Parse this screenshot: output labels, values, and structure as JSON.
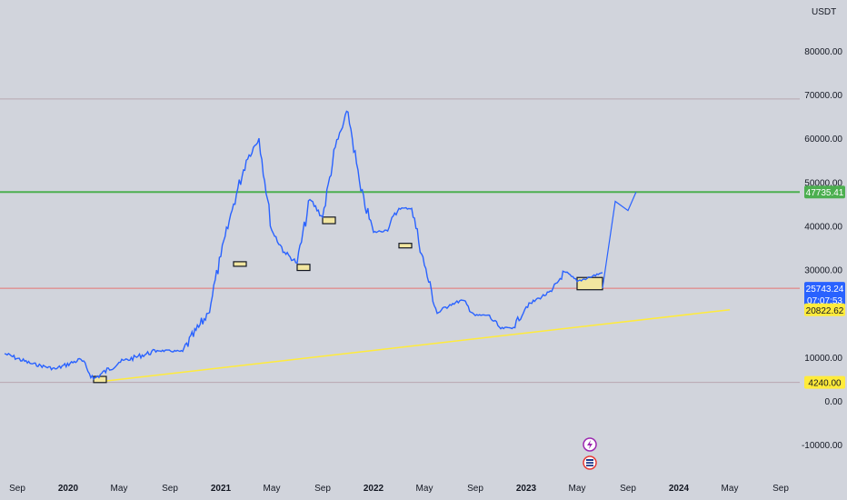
{
  "chart_data": {
    "type": "line",
    "currency": "USDT",
    "x_ticks": [
      "Sep",
      "2020",
      "May",
      "Sep",
      "2021",
      "May",
      "Sep",
      "2022",
      "May",
      "Sep",
      "2023",
      "May",
      "Sep",
      "2024",
      "May",
      "Sep"
    ],
    "major_ticks": [
      "2020",
      "2021",
      "2022",
      "2023",
      "2024"
    ],
    "y_ticks": [
      "80000.00",
      "70000.00",
      "60000.00",
      "50000.00",
      "40000.00",
      "30000.00",
      "10000.00",
      "0.00",
      "-10000.00"
    ],
    "ylim": [
      -10000,
      80000
    ],
    "series": [
      {
        "color": "#2962ff",
        "x": [
          "2019-08",
          "2019-10",
          "2019-12",
          "2020-02",
          "2020-03",
          "2020-05",
          "2020-08",
          "2020-10",
          "2020-12",
          "2021-01",
          "2021-02",
          "2021-03",
          "2021-04",
          "2021-05",
          "2021-06",
          "2021-07",
          "2021-08",
          "2021-09",
          "2021-10",
          "2021-11",
          "2021-12",
          "2022-01",
          "2022-02",
          "2022-03",
          "2022-04",
          "2022-05",
          "2022-06",
          "2022-07",
          "2022-08",
          "2022-09",
          "2022-10",
          "2022-11",
          "2022-12",
          "2023-01",
          "2023-02",
          "2023-03",
          "2023-04",
          "2023-05",
          "2023-06",
          "2023-07"
        ],
        "values": [
          10800,
          8600,
          7300,
          9500,
          5000,
          8800,
          11500,
          11300,
          20000,
          33000,
          45000,
          55000,
          60000,
          39000,
          34000,
          31500,
          46000,
          42000,
          58000,
          66000,
          48000,
          38500,
          39000,
          44000,
          44000,
          31000,
          20000,
          22000,
          23000,
          19500,
          19600,
          16500,
          16800,
          21500,
          23500,
          25000,
          29500,
          27300,
          28300,
          29300
        ]
      }
    ],
    "projection": {
      "color": "#2962ff",
      "x": [
        "2023-07",
        "2023-08",
        "2023-09",
        "2023-09-20"
      ],
      "values": [
        25743.24,
        45600,
        43500,
        47735.41
      ]
    },
    "horizontal_lines": [
      {
        "value": 47735.41,
        "color": "#4caf50",
        "label": "47735.41"
      },
      {
        "value": 69000,
        "color": "#b8a7b0"
      },
      {
        "value": 25743.24,
        "color": "#e57373"
      },
      {
        "value": 4240.0,
        "color": "#b8a7b0"
      }
    ],
    "trendline": {
      "color": "#ffeb3b",
      "x": [
        "2020-03",
        "2024-05"
      ],
      "values": [
        4240,
        20822.62
      ]
    },
    "zones": [
      {
        "x": [
          "2020-03",
          "2020-04"
        ],
        "values": [
          4200,
          5600
        ]
      },
      {
        "x": [
          "2021-02",
          "2021-03"
        ],
        "values": [
          30800,
          31800
        ]
      },
      {
        "x": [
          "2021-07",
          "2021-08"
        ],
        "values": [
          29800,
          31200
        ]
      },
      {
        "x": [
          "2021-09",
          "2021-10"
        ],
        "values": [
          40500,
          42000
        ]
      },
      {
        "x": [
          "2022-03",
          "2022-04"
        ],
        "values": [
          35000,
          36000
        ]
      },
      {
        "x": [
          "2023-05",
          "2023-07"
        ],
        "values": [
          25400,
          28200
        ]
      }
    ],
    "price_labels": [
      {
        "value": 47735.41,
        "text": "47735.41",
        "bg": "#4caf50",
        "fg": "#ffffff"
      },
      {
        "value": 25743.24,
        "text": "25743.24",
        "countdown": "07:07:53",
        "bg": "#2962ff",
        "fg": "#ffffff"
      },
      {
        "value": 20822.62,
        "text": "20822.62",
        "bg": "#ffeb3b",
        "fg": "#131722"
      },
      {
        "value": 4240.0,
        "text": "4240.00",
        "bg": "#ffeb3b",
        "fg": "#131722"
      }
    ],
    "event_icons": [
      {
        "name": "lightning-icon",
        "color": "#9c27b0"
      },
      {
        "name": "us-flag-icon",
        "color": "#e53935"
      }
    ]
  }
}
